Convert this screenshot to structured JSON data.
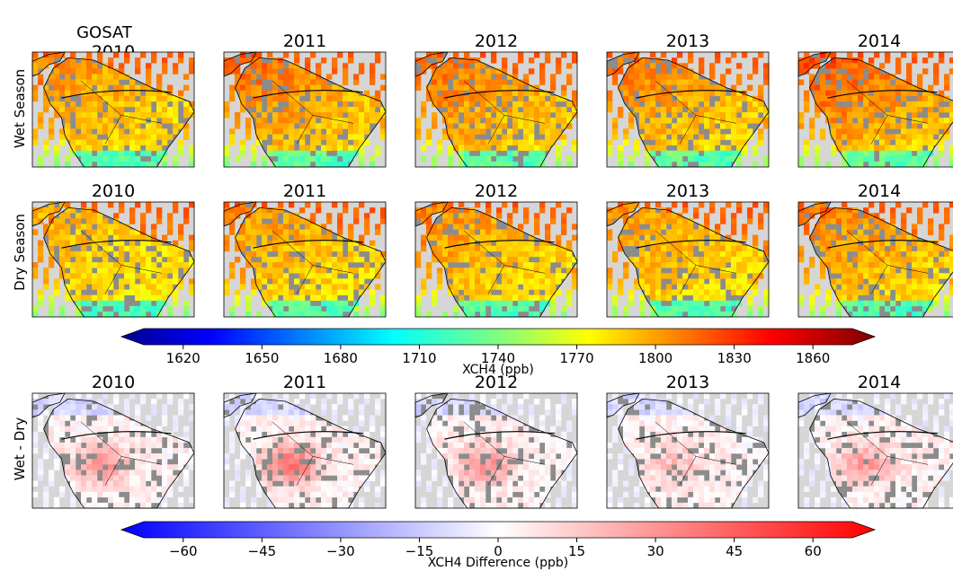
{
  "chart_data": {
    "type": "heatmap",
    "title": "GOSAT",
    "years": [
      "2010",
      "2011",
      "2012",
      "2013",
      "2014"
    ],
    "rows": [
      {
        "label": "Wet Season",
        "kind": "abs",
        "intensity": [
          0.55,
          0.75,
          0.7,
          0.65,
          0.85
        ]
      },
      {
        "label": "Dry Season",
        "kind": "abs",
        "intensity": [
          0.35,
          0.5,
          0.55,
          0.48,
          0.62
        ]
      },
      {
        "label": "Wet - Dry",
        "kind": "diff",
        "intensity": [
          0.45,
          0.6,
          0.45,
          0.25,
          0.4
        ]
      }
    ],
    "colorbars": [
      {
        "label": "XCH4 (ppb)",
        "range": [
          1605,
          1875
        ],
        "ticks": [
          1620,
          1650,
          1680,
          1710,
          1740,
          1770,
          1800,
          1830,
          1860
        ],
        "tick_labels": [
          "1620",
          "1650",
          "1680",
          "1710",
          "1740",
          "1770",
          "1800",
          "1830",
          "1860"
        ],
        "colormap": "jet",
        "extend": "both"
      },
      {
        "label": "XCH4 Difference (ppb)",
        "range": [
          -67.5,
          67.5
        ],
        "ticks": [
          -60,
          -45,
          -30,
          -15,
          0,
          15,
          30,
          45,
          60
        ],
        "tick_labels": [
          "−60",
          "−45",
          "−30",
          "−15",
          "0",
          "15",
          "30",
          "45",
          "60"
        ],
        "colormap": "bwr",
        "extend": "both"
      }
    ]
  },
  "colors": {
    "map_background": "#d6d6d6",
    "land_nodata": "#8c8c8c",
    "coastline": "#000000"
  }
}
